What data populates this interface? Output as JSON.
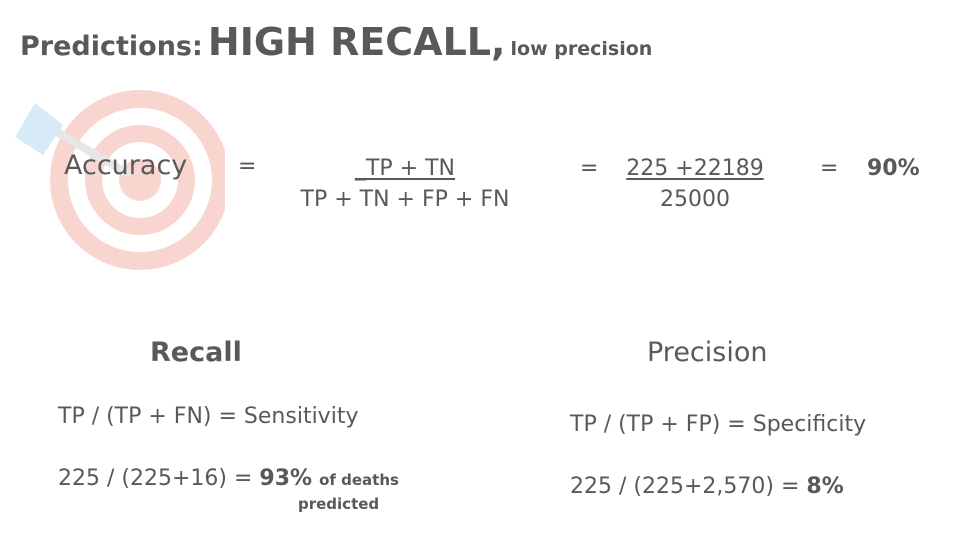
{
  "title": {
    "prefix": "Predictions:",
    "main": "HIGH RECALL,",
    "suffix": "low precision"
  },
  "icons": {
    "target": "target-with-arrow-icon"
  },
  "accuracy": {
    "label": "Accuracy",
    "eq1": "=",
    "numerator": "_TP + TN",
    "denominator": "TP + TN + FP + FN",
    "eq2": "=",
    "value_numerator": "225 +22189",
    "value_denominator": "25000",
    "eq3": "=",
    "result": "90%"
  },
  "recall": {
    "heading": "Recall",
    "formula": "TP / (TP + FN) = Sensitivity",
    "calc": "225 / (225+16) =",
    "result": "93%",
    "note_line1": "of deaths",
    "note_line2": "predicted"
  },
  "precision": {
    "heading": "Precision",
    "formula": "TP / (TP + FP) = Specificity",
    "calc": "225 / (225+2,570) =",
    "result": "8%"
  },
  "colors": {
    "text": "#595959",
    "target": "#f8d5cf",
    "arrow": "#d6eaf7"
  }
}
